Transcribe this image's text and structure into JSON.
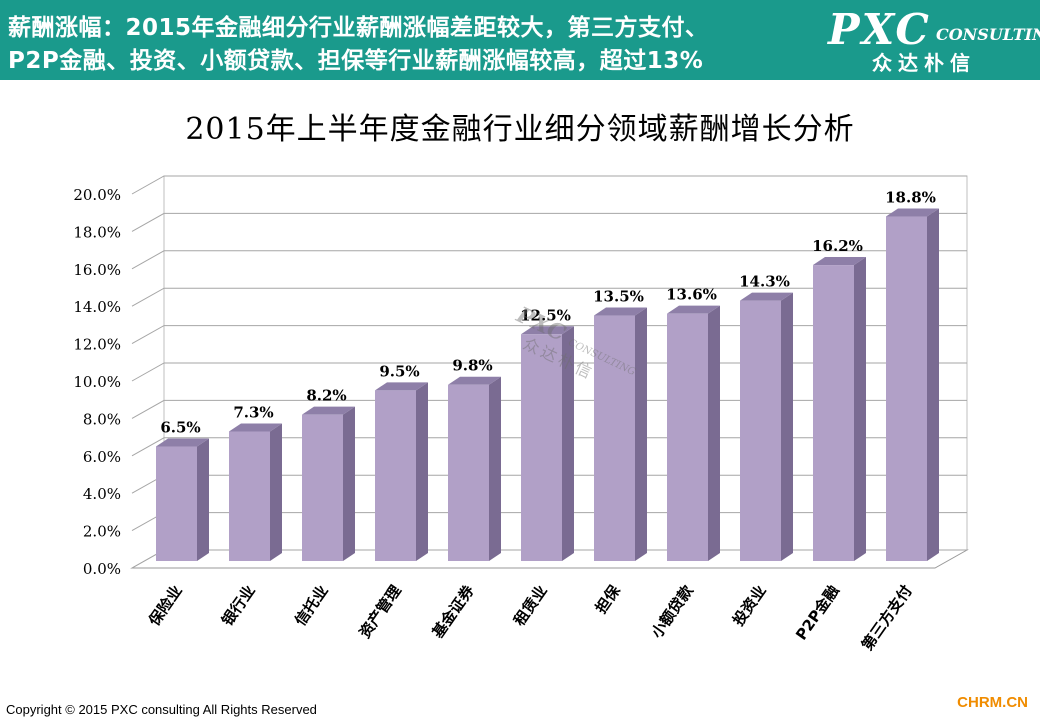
{
  "header": {
    "line1": "薪酬涨幅：2015年金融细分行业薪酬涨幅差距较大，第三方支付、",
    "line2": "P2P金融、投资、小额贷款、担保等行业薪酬涨幅较高，超过13%",
    "logo_main": "PXC",
    "logo_sub": "CONSULTING",
    "logo_cn": "众达朴信"
  },
  "chart_data": {
    "type": "bar",
    "title": "2015年上半年度金融行业细分领域薪酬增长分析",
    "categories": [
      "保险业",
      "银行业",
      "信托业",
      "资产管理",
      "基金证券",
      "租赁业",
      "担保",
      "小额贷款",
      "投资业",
      "P2P金融",
      "第三方支付"
    ],
    "values": [
      6.5,
      7.3,
      8.2,
      9.5,
      9.8,
      12.5,
      13.5,
      13.6,
      14.3,
      16.2,
      18.8
    ],
    "value_labels": [
      "6.5%",
      "7.3%",
      "8.2%",
      "9.5%",
      "9.8%",
      "12.5%",
      "13.5%",
      "13.6%",
      "14.3%",
      "16.2%",
      "18.8%"
    ],
    "yticks": [
      "0.0%",
      "2.0%",
      "4.0%",
      "6.0%",
      "8.0%",
      "10.0%",
      "12.0%",
      "14.0%",
      "16.0%",
      "18.0%",
      "20.0%"
    ],
    "ylim": [
      0,
      20
    ],
    "grid": true,
    "style": "3d-column",
    "bar_color": "#b1a0c7",
    "bar_side_color": "#7a6b92",
    "bar_top_color": "#8e7fa8"
  },
  "watermark": {
    "main": "PXC",
    "sub": "CONSULTING",
    "cn": "众达朴信"
  },
  "footer": {
    "copyright": "Copyright © 2015  PXC consulting All Rights Reserved",
    "source": "CHRM.CN"
  }
}
